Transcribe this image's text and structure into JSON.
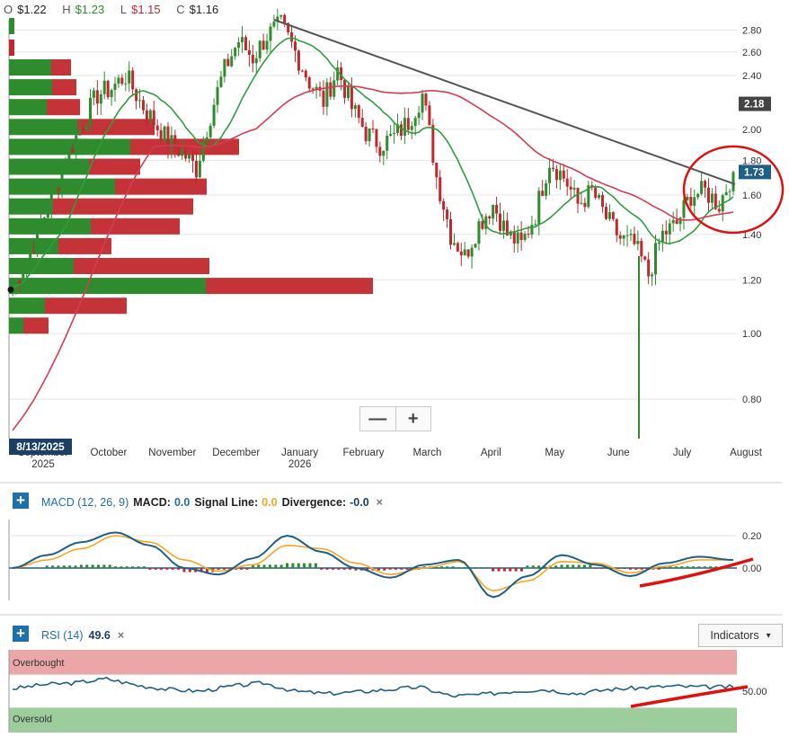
{
  "ohlc": {
    "open_label": "O",
    "open_value": "$1.22",
    "high_label": "H",
    "high_value": "$1.23",
    "low_label": "L",
    "low_value": "$1.15",
    "close_label": "C",
    "close_value": "$1.16"
  },
  "colors": {
    "up": "#2e8b2e",
    "down": "#c0282d",
    "sma_fast": "#2e9e3e",
    "sma_slow": "#d83a55",
    "trendline": "#555555",
    "macd": "#1f5f86",
    "signal": "#f5a623",
    "annotation": "#e01010",
    "rsi_line": "#1f5f86"
  },
  "zoom": {
    "minus_icon": "minus-icon",
    "plus_icon": "plus-icon"
  },
  "crosshair_date": "8/13/2025",
  "chart_data": [
    {
      "type": "candlestick",
      "title": "",
      "y_ticks": [
        "2.80",
        "2.60",
        "2.40",
        "2.00",
        "1.80",
        "1.60",
        "1.40",
        "1.20",
        "1.00",
        "0.80"
      ],
      "y_scale": "log",
      "ylim": [
        0.7,
        2.9
      ],
      "x_labels": [
        {
          "line1": "September",
          "line2": "2025"
        },
        {
          "line1": "October",
          "line2": ""
        },
        {
          "line1": "November",
          "line2": ""
        },
        {
          "line1": "December",
          "line2": ""
        },
        {
          "line1": "January",
          "line2": "2026"
        },
        {
          "line1": "February",
          "line2": ""
        },
        {
          "line1": "March",
          "line2": ""
        },
        {
          "line1": "April",
          "line2": ""
        },
        {
          "line1": "May",
          "line2": ""
        },
        {
          "line1": "June",
          "line2": ""
        },
        {
          "line1": "July",
          "line2": ""
        },
        {
          "line1": "August",
          "line2": ""
        }
      ],
      "price_badges": [
        {
          "label": "2.18",
          "value": 2.18,
          "color": "#444444"
        },
        {
          "label": "1.73",
          "value": 1.73,
          "color": "#1f5f86"
        }
      ],
      "close_series": [
        {
          "date": "2025-08-13",
          "close": 1.16
        },
        {
          "date": "2025-08-20",
          "close": 1.28
        },
        {
          "date": "2025-08-27",
          "close": 1.45
        },
        {
          "date": "2025-09-03",
          "close": 1.62
        },
        {
          "date": "2025-09-10",
          "close": 1.85
        },
        {
          "date": "2025-09-17",
          "close": 2.05
        },
        {
          "date": "2025-09-24",
          "close": 2.25
        },
        {
          "date": "2025-10-01",
          "close": 2.3
        },
        {
          "date": "2025-10-08",
          "close": 2.4
        },
        {
          "date": "2025-10-15",
          "close": 2.2
        },
        {
          "date": "2025-10-22",
          "close": 2.05
        },
        {
          "date": "2025-10-29",
          "close": 1.92
        },
        {
          "date": "2025-11-05",
          "close": 1.85
        },
        {
          "date": "2025-11-12",
          "close": 1.75
        },
        {
          "date": "2025-11-19",
          "close": 2.1
        },
        {
          "date": "2025-11-26",
          "close": 2.45
        },
        {
          "date": "2025-12-03",
          "close": 2.7
        },
        {
          "date": "2025-12-10",
          "close": 2.55
        },
        {
          "date": "2025-12-17",
          "close": 2.75
        },
        {
          "date": "2025-12-24",
          "close": 2.85
        },
        {
          "date": "2025-12-31",
          "close": 2.6
        },
        {
          "date": "2026-01-07",
          "close": 2.35
        },
        {
          "date": "2026-01-14",
          "close": 2.2
        },
        {
          "date": "2026-01-21",
          "close": 2.45
        },
        {
          "date": "2026-01-28",
          "close": 2.15
        },
        {
          "date": "2026-02-04",
          "close": 1.98
        },
        {
          "date": "2026-02-11",
          "close": 1.9
        },
        {
          "date": "2026-02-18",
          "close": 1.95
        },
        {
          "date": "2026-02-25",
          "close": 2.05
        },
        {
          "date": "2026-03-04",
          "close": 2.25
        },
        {
          "date": "2026-03-11",
          "close": 1.7
        },
        {
          "date": "2026-03-18",
          "close": 1.4
        },
        {
          "date": "2026-03-25",
          "close": 1.3
        },
        {
          "date": "2026-04-01",
          "close": 1.45
        },
        {
          "date": "2026-04-08",
          "close": 1.55
        },
        {
          "date": "2026-04-15",
          "close": 1.4
        },
        {
          "date": "2026-04-22",
          "close": 1.35
        },
        {
          "date": "2026-04-29",
          "close": 1.5
        },
        {
          "date": "2026-05-06",
          "close": 1.8
        },
        {
          "date": "2026-05-13",
          "close": 1.7
        },
        {
          "date": "2026-05-20",
          "close": 1.55
        },
        {
          "date": "2026-05-27",
          "close": 1.62
        },
        {
          "date": "2026-06-03",
          "close": 1.48
        },
        {
          "date": "2026-06-10",
          "close": 1.38
        },
        {
          "date": "2026-06-17",
          "close": 1.35
        },
        {
          "date": "2026-06-24",
          "close": 1.22
        },
        {
          "date": "2026-07-01",
          "close": 1.4
        },
        {
          "date": "2026-07-08",
          "close": 1.45
        },
        {
          "date": "2026-07-15",
          "close": 1.6
        },
        {
          "date": "2026-07-22",
          "close": 1.62
        },
        {
          "date": "2026-07-29",
          "close": 1.55
        },
        {
          "date": "2026-08-05",
          "close": 1.73
        }
      ],
      "volume_profile": {
        "rows": [
          {
            "up": 47,
            "down": 22
          },
          {
            "up": 48,
            "down": 27
          },
          {
            "up": 42,
            "down": 37
          },
          {
            "up": 76,
            "down": 86
          },
          {
            "up": 135,
            "down": 121
          },
          {
            "up": 89,
            "down": 57
          },
          {
            "up": 118,
            "down": 102
          },
          {
            "up": 48,
            "down": 157
          },
          {
            "up": 91,
            "down": 99
          },
          {
            "up": 55,
            "down": 59
          },
          {
            "up": 72,
            "down": 151
          },
          {
            "up": 219,
            "down": 186
          },
          {
            "up": 40,
            "down": 91
          },
          {
            "up": 16,
            "down": 28
          }
        ]
      }
    },
    {
      "type": "line",
      "title": "",
      "y_ticks": [
        "0.20",
        "0.00"
      ],
      "ylim": [
        -0.2,
        0.3
      ],
      "zero_line": 0,
      "macd": [
        0.0,
        0.08,
        0.16,
        0.22,
        0.14,
        0.0,
        -0.04,
        0.06,
        0.2,
        0.1,
        0.0,
        -0.06,
        0.02,
        0.05,
        -0.18,
        -0.05,
        0.08,
        0.02,
        -0.05,
        0.03,
        0.07,
        0.05
      ],
      "signal": [
        0.0,
        0.05,
        0.12,
        0.2,
        0.16,
        0.05,
        -0.02,
        0.02,
        0.14,
        0.12,
        0.03,
        -0.04,
        0.0,
        0.04,
        -0.14,
        -0.08,
        0.04,
        0.03,
        -0.03,
        0.01,
        0.05,
        0.05
      ]
    },
    {
      "type": "line",
      "title": "",
      "y_ticks": [
        "50.00"
      ],
      "ylim": [
        0,
        100
      ],
      "overbought_level": 70,
      "oversold_level": 30,
      "rsi": [
        53,
        58,
        60,
        65,
        57,
        52,
        50,
        56,
        60,
        50,
        47,
        49,
        52,
        55,
        44,
        46,
        50,
        52,
        47,
        52,
        54,
        56,
        55,
        55
      ]
    }
  ],
  "macd_panel": {
    "name": "MACD (12, 26, 9)",
    "macd_key": "MACD:",
    "macd_value": "0.0",
    "signal_key": "Signal Line:",
    "signal_value": "0.0",
    "div_key": "Divergence:",
    "div_value": "-0.0",
    "close": "×"
  },
  "rsi_panel": {
    "name": "RSI (14)",
    "value": "49.6",
    "close": "×",
    "overbought_label": "Overbought",
    "oversold_label": "Oversold"
  },
  "indicators_button": {
    "label": "Indicators",
    "chevron": "▾"
  },
  "add_button": {
    "label": "+"
  }
}
